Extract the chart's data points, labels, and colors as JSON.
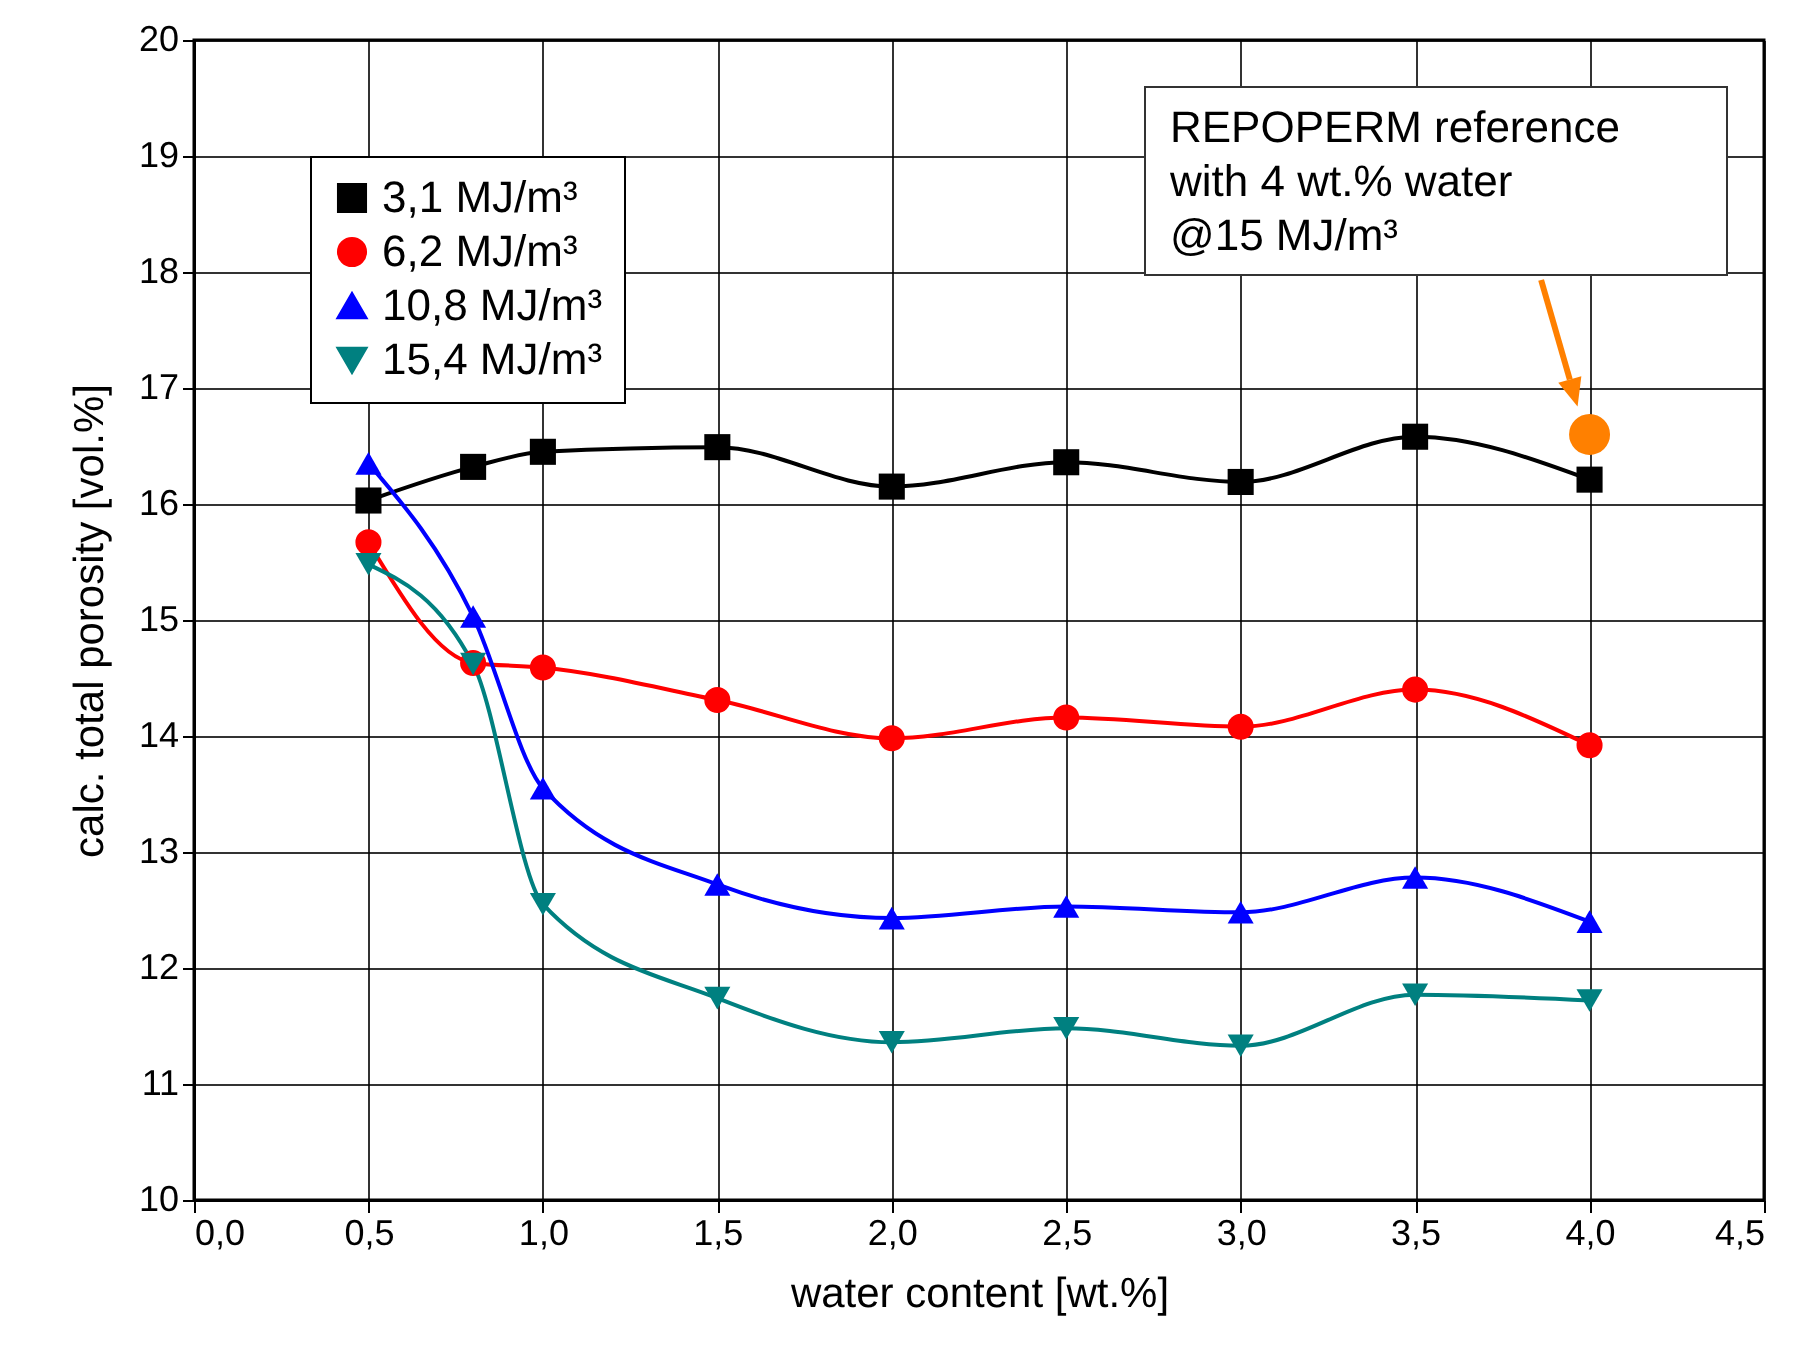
{
  "chart_data": {
    "type": "line",
    "xlabel": "water content [wt.%]",
    "ylabel": "calc. total porosity [vol.%]",
    "x": [
      0.5,
      0.8,
      1.0,
      1.5,
      2.0,
      2.5,
      3.0,
      3.5,
      4.0
    ],
    "series": [
      {
        "name": "3,1 MJ/m³",
        "color": "#000000",
        "marker": "square",
        "values": [
          16.03,
          16.32,
          16.45,
          16.49,
          16.15,
          16.36,
          16.19,
          16.58,
          16.21
        ]
      },
      {
        "name": "6,2 MJ/m³",
        "color": "#ff0000",
        "marker": "circle",
        "values": [
          15.67,
          14.63,
          14.59,
          14.31,
          13.98,
          14.16,
          14.08,
          14.4,
          13.92
        ]
      },
      {
        "name": "10,8 MJ/m³",
        "color": "#0000ff",
        "marker": "triangle",
        "values": [
          16.35,
          15.03,
          13.55,
          12.72,
          12.43,
          12.53,
          12.48,
          12.78,
          12.4
        ]
      },
      {
        "name": "15,4 MJ/m³",
        "color": "#008080",
        "marker": "triangle-down",
        "values": [
          15.48,
          14.62,
          12.55,
          11.74,
          11.36,
          11.48,
          11.33,
          11.77,
          11.72
        ]
      },
      {
        "type": "scatter",
        "color": "#ff8000",
        "marker": "circle",
        "x": [
          4.0
        ],
        "values": [
          16.6
        ]
      }
    ],
    "annotations": [
      "REPOPERM reference\nwith 4 wt.% water\n@15 MJ/m³"
    ],
    "xlim": [
      0,
      4.5
    ],
    "xticks": [
      {
        "value": 0,
        "label": "0,0"
      },
      {
        "value": 0.5,
        "label": "0,5"
      },
      {
        "value": 1,
        "label": "1,0"
      },
      {
        "value": 1.5,
        "label": "1,5"
      },
      {
        "value": 2,
        "label": "2,0"
      },
      {
        "value": 2.5,
        "label": "2,5"
      },
      {
        "value": 3,
        "label": "3,0"
      },
      {
        "value": 3.5,
        "label": "3,5"
      },
      {
        "value": 4,
        "label": "4,0"
      },
      {
        "value": 4.5,
        "label": "4,5"
      }
    ],
    "ylim": [
      10,
      20
    ],
    "yticks": [
      10,
      11,
      12,
      13,
      14,
      15,
      16,
      17,
      18,
      19,
      20
    ],
    "grid": true,
    "legend": "top left",
    "line_style": "solid"
  }
}
